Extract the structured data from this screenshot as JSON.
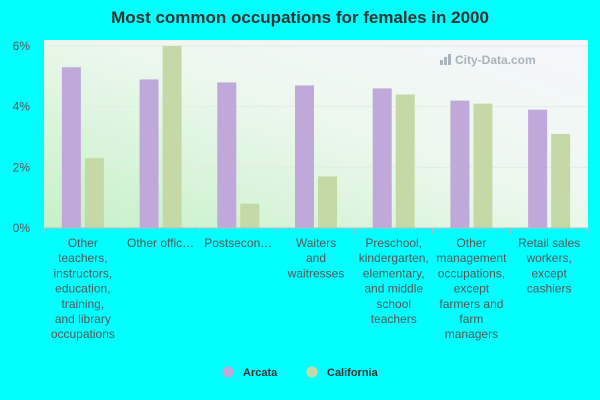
{
  "chart_data": {
    "type": "bar",
    "title": "Most common occupations for females in 2000",
    "xlabel": "",
    "ylabel": "",
    "ylim": [
      0,
      6
    ],
    "yticks": [
      "0%",
      "2%",
      "4%",
      "6%"
    ],
    "ytick_values": [
      0,
      2,
      4,
      6
    ],
    "grid": true,
    "legend_position": "bottom-center",
    "categories": [
      "Other teachers, instructors, education, training, and library occupations",
      "Other offic…",
      "Postsecon…",
      "Waiters and waitresses",
      "Preschool, kindergarten, elementary, and middle school teachers",
      "Other management occupations, except farmers and farm managers",
      "Retail sales workers, except cashiers"
    ],
    "category_lines": [
      [
        "Other",
        "teachers,",
        "instructors,",
        "education,",
        "training,",
        "and library",
        "occupations"
      ],
      [
        "Other offic…"
      ],
      [
        "Postsecon…"
      ],
      [
        "Waiters",
        "and",
        "waitresses"
      ],
      [
        "Preschool,",
        "kindergarten,",
        "elementary,",
        "and middle",
        "school",
        "teachers"
      ],
      [
        "Other",
        "management",
        "occupations,",
        "except",
        "farmers and",
        "farm",
        "managers"
      ],
      [
        "Retail sales",
        "workers,",
        "except",
        "cashiers"
      ]
    ],
    "series": [
      {
        "name": "Arcata",
        "color": "#c0a8da",
        "values": [
          5.3,
          4.9,
          4.8,
          4.7,
          4.6,
          4.2,
          3.9
        ]
      },
      {
        "name": "California",
        "color": "#c4d9a6",
        "values": [
          2.3,
          6.0,
          0.8,
          1.7,
          4.4,
          4.1,
          3.1
        ]
      }
    ]
  },
  "watermark": "City-Data.com"
}
